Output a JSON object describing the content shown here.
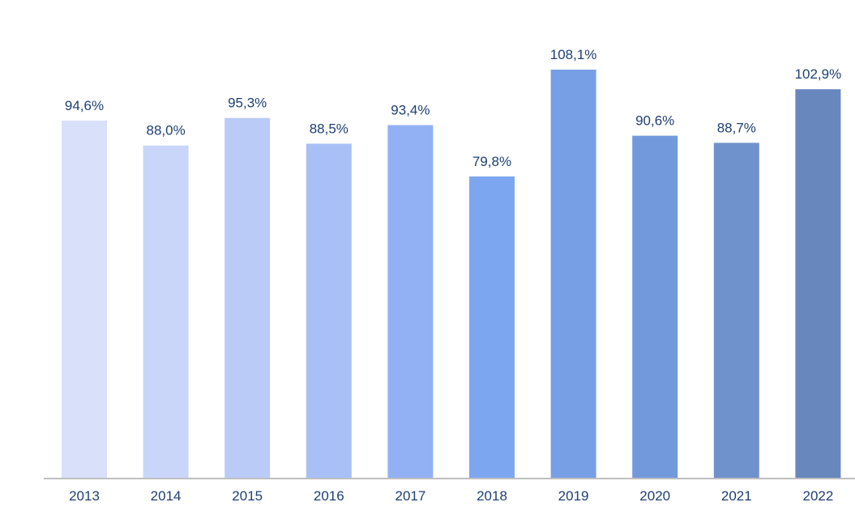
{
  "chart_data": {
    "type": "bar",
    "title": "",
    "xlabel": "",
    "ylabel": "",
    "ylim": [
      0,
      108.1
    ],
    "categories": [
      "2013",
      "2014",
      "2015",
      "2016",
      "2017",
      "2018",
      "2019",
      "2020",
      "2021",
      "2022"
    ],
    "values": [
      94.6,
      88.0,
      95.3,
      88.5,
      93.4,
      79.8,
      108.1,
      90.6,
      88.7,
      102.9
    ],
    "value_labels": [
      "94,6%",
      "88,0%",
      "95,3%",
      "88,5%",
      "93,4%",
      "79,8%",
      "108,1%",
      "90,6%",
      "88,7%",
      "102,9%"
    ],
    "bar_colors": [
      "#d8e0fa",
      "#c9d6f9",
      "#bbcbf7",
      "#a8c0f6",
      "#92b1f4",
      "#7ca7f0",
      "#779fe5",
      "#7299dc",
      "#7092cc",
      "#6787bd"
    ],
    "axis_color": "#bfbfbf",
    "label_color": "#1f3f73",
    "grid": false
  }
}
